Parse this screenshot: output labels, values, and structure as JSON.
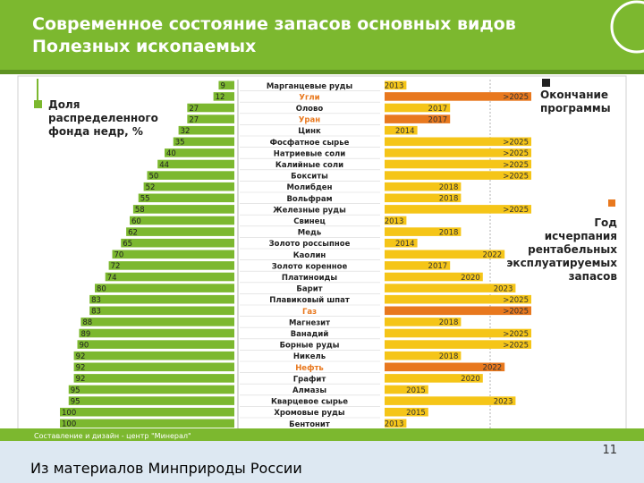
{
  "title_line1": "Современное состояние запасов основных видов",
  "title_line2": "Полезных ископаемых",
  "footer_credit": "Составление и дизайн - центр \"Минерал\"",
  "source_note": "Из материалов Минприроды России",
  "page_number": "11",
  "colors": {
    "header_bg": "#7cb82f",
    "green_bar": "#7cb82f",
    "yellow_bar": "#f5c518",
    "orange_bar": "#e8781e",
    "highlight_text": "#e8781e",
    "footer_bg": "#7cb82f",
    "bottom_band": "#dde8f2"
  },
  "chart_data": {
    "type": "bar",
    "left_series_label": [
      "Доля",
      "распределенного",
      "фонда недр, %"
    ],
    "right_legend_top": [
      "Окончание",
      "программы"
    ],
    "right_legend_bottom": [
      "Год",
      "исчерпания",
      "рентабельных",
      "эксплуатируемых",
      "запасов"
    ],
    "rows": [
      {
        "name": "Марганцевые руды",
        "share": 9,
        "year": "2013",
        "kind": "year",
        "highlight": false
      },
      {
        "name": "Угли",
        "share": 12,
        "year": ">2025",
        "kind": "program",
        "highlight": true
      },
      {
        "name": "Олово",
        "share": 27,
        "year": "2017",
        "kind": "year",
        "highlight": false
      },
      {
        "name": "Уран",
        "share": 27,
        "year": "2017",
        "kind": "program",
        "highlight": true
      },
      {
        "name": "Цинк",
        "share": 32,
        "year": "2014",
        "kind": "year",
        "highlight": false
      },
      {
        "name": "Фосфатное сырье",
        "share": 35,
        "year": ">2025",
        "kind": "year",
        "highlight": false
      },
      {
        "name": "Натриевые соли",
        "share": 40,
        "year": ">2025",
        "kind": "year",
        "highlight": false
      },
      {
        "name": "Калийные соли",
        "share": 44,
        "year": ">2025",
        "kind": "year",
        "highlight": false
      },
      {
        "name": "Бокситы",
        "share": 50,
        "year": ">2025",
        "kind": "year",
        "highlight": false
      },
      {
        "name": "Молибден",
        "share": 52,
        "year": "2018",
        "kind": "year",
        "highlight": false
      },
      {
        "name": "Вольфрам",
        "share": 55,
        "year": "2018",
        "kind": "year",
        "highlight": false
      },
      {
        "name": "Железные руды",
        "share": 58,
        "year": ">2025",
        "kind": "year",
        "highlight": false
      },
      {
        "name": "Свинец",
        "share": 60,
        "year": "2013",
        "kind": "year",
        "highlight": false
      },
      {
        "name": "Медь",
        "share": 62,
        "year": "2018",
        "kind": "year",
        "highlight": false
      },
      {
        "name": "Золото россыпное",
        "share": 65,
        "year": "2014",
        "kind": "year",
        "highlight": false
      },
      {
        "name": "Каолин",
        "share": 70,
        "year": "2022",
        "kind": "year",
        "highlight": false
      },
      {
        "name": "Золото коренное",
        "share": 72,
        "year": "2017",
        "kind": "year",
        "highlight": false
      },
      {
        "name": "Платиноиды",
        "share": 74,
        "year": "2020",
        "kind": "year",
        "highlight": false
      },
      {
        "name": "Барит",
        "share": 80,
        "year": "2023",
        "kind": "year",
        "highlight": false
      },
      {
        "name": "Плавиковый шпат",
        "share": 83,
        "year": ">2025",
        "kind": "year",
        "highlight": false
      },
      {
        "name": "Газ",
        "share": 83,
        "year": ">2025",
        "kind": "program",
        "highlight": true
      },
      {
        "name": "Магнезит",
        "share": 88,
        "year": "2018",
        "kind": "year",
        "highlight": false
      },
      {
        "name": "Ванадий",
        "share": 89,
        "year": ">2025",
        "kind": "year",
        "highlight": false
      },
      {
        "name": "Борные руды",
        "share": 90,
        "year": ">2025",
        "kind": "year",
        "highlight": false
      },
      {
        "name": "Никель",
        "share": 92,
        "year": "2018",
        "kind": "year",
        "highlight": false
      },
      {
        "name": "Нефть",
        "share": 92,
        "year": "2022",
        "kind": "program",
        "highlight": true
      },
      {
        "name": "Графит",
        "share": 92,
        "year": "2020",
        "kind": "year",
        "highlight": false
      },
      {
        "name": "Алмазы",
        "share": 95,
        "year": "2015",
        "kind": "year",
        "highlight": false
      },
      {
        "name": "Кварцевое сырье",
        "share": 95,
        "year": "2023",
        "kind": "year",
        "highlight": false
      },
      {
        "name": "Хромовые руды",
        "share": 100,
        "year": "2015",
        "kind": "year",
        "highlight": false
      },
      {
        "name": "Бентонит",
        "share": 100,
        "year": "2013",
        "kind": "year",
        "highlight": false
      }
    ]
  }
}
